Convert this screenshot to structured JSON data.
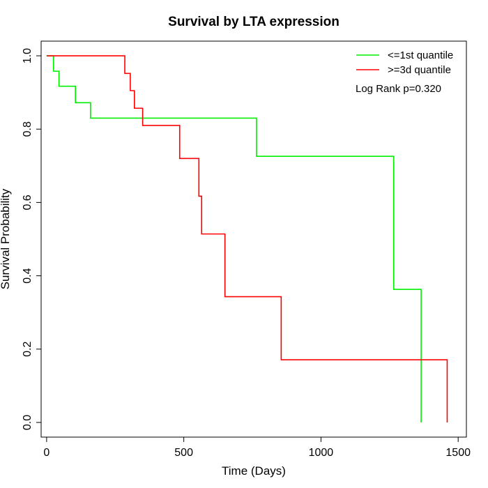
{
  "chart_data": {
    "type": "line",
    "title": "Survival by LTA expression",
    "xlabel": "Time (Days)",
    "ylabel": "Survival Probability",
    "xlim": [
      -20,
      1530
    ],
    "ylim": [
      -0.04,
      1.04
    ],
    "x_ticks": [
      0,
      500,
      1000,
      1500
    ],
    "y_ticks": [
      0.0,
      0.2,
      0.4,
      0.6,
      0.8,
      1.0
    ],
    "x_tick_labels": [
      "0",
      "500",
      "1000",
      "1500"
    ],
    "y_tick_labels": [
      "0.0",
      "0.2",
      "0.4",
      "0.6",
      "0.8",
      "1.0"
    ],
    "grid": false,
    "legend_position": "top-right",
    "annotation": "Log Rank p=0.320",
    "series": [
      {
        "name": "<=1st quantile",
        "color": "#00ee00",
        "step": true,
        "x": [
          0,
          25,
          45,
          105,
          160,
          765,
          1265,
          1365
        ],
        "y": [
          1.0,
          0.958,
          0.917,
          0.872,
          0.83,
          0.726,
          0.363,
          0.0
        ]
      },
      {
        "name": ">=3d quantile",
        "color": "#ff0000",
        "step": true,
        "x": [
          0,
          285,
          305,
          320,
          350,
          485,
          555,
          565,
          650,
          855,
          1460
        ],
        "y": [
          1.0,
          0.952,
          0.905,
          0.857,
          0.81,
          0.72,
          0.617,
          0.514,
          0.343,
          0.171,
          0.0
        ]
      }
    ]
  }
}
